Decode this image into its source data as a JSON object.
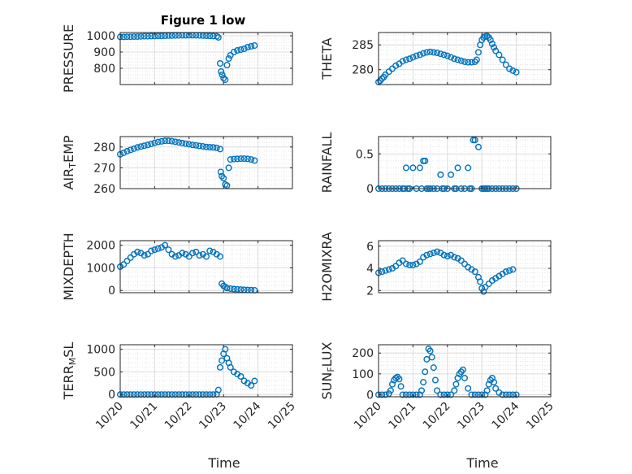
{
  "figure": {
    "title": "Figure 1 low",
    "marker_color": "#0072bd",
    "axis_color": "#262626",
    "grid_color": "#dcdcdc"
  },
  "chart_data": [
    {
      "id": "pressure",
      "type": "scatter",
      "title": "Figure 1 low",
      "ylabel": "PRESSURE",
      "ylabel_sub": "",
      "ylabel_tail": "",
      "xlim": [
        0,
        5
      ],
      "ylim": [
        700,
        1020
      ],
      "yticks": [
        800,
        900,
        1000
      ],
      "xticks": [
        0,
        1,
        2,
        3,
        4,
        5
      ],
      "xticklabels": [],
      "xlabel": "",
      "x": [
        0,
        0.1,
        0.2,
        0.3,
        0.4,
        0.5,
        0.6,
        0.7,
        0.8,
        0.9,
        1.0,
        1.1,
        1.2,
        1.3,
        1.4,
        1.5,
        1.6,
        1.7,
        1.8,
        1.9,
        2.0,
        2.1,
        2.2,
        2.3,
        2.4,
        2.5,
        2.6,
        2.7,
        2.8,
        2.85,
        2.9,
        2.93,
        2.96,
        3.0,
        3.05,
        3.1,
        3.15,
        3.2,
        3.3,
        3.4,
        3.5,
        3.6,
        3.7,
        3.8,
        3.9
      ],
      "y": [
        993,
        993,
        994,
        994,
        995,
        995,
        996,
        997,
        997,
        998,
        998,
        999,
        999,
        1000,
        1001,
        1001,
        1002,
        1002,
        1003,
        1003,
        1003,
        1003,
        1003,
        1002,
        1001,
        1000,
        999,
        998,
        997,
        990,
        830,
        780,
        760,
        740,
        730,
        820,
        860,
        880,
        900,
        910,
        915,
        920,
        930,
        935,
        940
      ]
    },
    {
      "id": "theta",
      "type": "scatter",
      "title": "",
      "ylabel": "THETA",
      "ylabel_sub": "",
      "ylabel_tail": "",
      "xlim": [
        0,
        5
      ],
      "ylim": [
        277,
        287.5
      ],
      "yticks": [
        280,
        285
      ],
      "xticks": [
        0,
        1,
        2,
        3,
        4,
        5
      ],
      "xticklabels": [],
      "xlabel": "",
      "x": [
        0,
        0.05,
        0.1,
        0.15,
        0.2,
        0.3,
        0.4,
        0.5,
        0.6,
        0.7,
        0.8,
        0.9,
        1.0,
        1.1,
        1.2,
        1.3,
        1.4,
        1.5,
        1.6,
        1.7,
        1.8,
        1.9,
        2.0,
        2.1,
        2.2,
        2.3,
        2.4,
        2.5,
        2.6,
        2.7,
        2.8,
        2.85,
        2.9,
        2.95,
        3.0,
        3.05,
        3.1,
        3.15,
        3.2,
        3.25,
        3.3,
        3.35,
        3.4,
        3.5,
        3.6,
        3.7,
        3.8,
        3.9,
        4.0
      ],
      "y": [
        277.5,
        277.8,
        278.2,
        278.5,
        279.0,
        279.6,
        280.2,
        280.8,
        281.2,
        281.7,
        282.0,
        282.2,
        282.5,
        282.8,
        283.0,
        283.3,
        283.5,
        283.6,
        283.5,
        283.4,
        283.2,
        283.0,
        282.8,
        282.5,
        282.2,
        282.0,
        281.8,
        281.6,
        281.5,
        281.5,
        281.6,
        282.0,
        283.5,
        285.0,
        286.0,
        286.5,
        286.7,
        286.8,
        286.5,
        286.0,
        285.2,
        284.5,
        283.8,
        283.0,
        282.0,
        281.0,
        280.2,
        279.8,
        279.5
      ]
    },
    {
      "id": "air_temp",
      "type": "scatter",
      "title": "",
      "ylabel": "AIR",
      "ylabel_sub": "T",
      "ylabel_tail": "EMP",
      "xlim": [
        0,
        5
      ],
      "ylim": [
        260,
        285
      ],
      "yticks": [
        260,
        270,
        280
      ],
      "xticks": [
        0,
        1,
        2,
        3,
        4,
        5
      ],
      "xticklabels": [],
      "xlabel": "",
      "x": [
        0,
        0.1,
        0.2,
        0.3,
        0.4,
        0.5,
        0.6,
        0.7,
        0.8,
        0.9,
        1.0,
        1.1,
        1.2,
        1.3,
        1.4,
        1.5,
        1.6,
        1.7,
        1.8,
        1.9,
        2.0,
        2.1,
        2.2,
        2.3,
        2.4,
        2.5,
        2.6,
        2.7,
        2.8,
        2.9,
        2.92,
        2.95,
        3.0,
        3.05,
        3.1,
        3.15,
        3.2,
        3.3,
        3.4,
        3.5,
        3.6,
        3.7,
        3.8,
        3.9
      ],
      "y": [
        276.5,
        277.2,
        278.0,
        278.6,
        279.2,
        279.8,
        280.2,
        280.6,
        281.0,
        281.5,
        282.0,
        282.4,
        282.7,
        283.0,
        283.0,
        282.8,
        282.5,
        282.2,
        281.9,
        281.6,
        281.3,
        281.0,
        280.8,
        280.5,
        280.3,
        280.0,
        279.9,
        279.8,
        279.6,
        279.0,
        268.0,
        266.0,
        265.0,
        262.0,
        261.5,
        270.0,
        274.0,
        274.2,
        274.3,
        274.4,
        274.4,
        274.3,
        274.0,
        273.5
      ]
    },
    {
      "id": "rainfall",
      "type": "scatter",
      "title": "",
      "ylabel": "RAINFALL",
      "ylabel_sub": "",
      "ylabel_tail": "",
      "xlim": [
        0,
        5
      ],
      "ylim": [
        0,
        0.75
      ],
      "yticks": [
        0,
        0.5
      ],
      "xticks": [
        0,
        1,
        2,
        3,
        4,
        5
      ],
      "xticklabels": [],
      "xlabel": "",
      "x": [
        0,
        0.1,
        0.2,
        0.3,
        0.4,
        0.5,
        0.6,
        0.7,
        0.75,
        0.8,
        0.85,
        0.9,
        1.0,
        1.1,
        1.2,
        1.25,
        1.3,
        1.35,
        1.4,
        1.45,
        1.5,
        1.6,
        1.7,
        1.8,
        1.85,
        1.9,
        2.0,
        2.1,
        2.2,
        2.25,
        2.3,
        2.4,
        2.5,
        2.6,
        2.65,
        2.7,
        2.75,
        2.8,
        2.9,
        3.0,
        3.05,
        3.1,
        3.15,
        3.2,
        3.3,
        3.4,
        3.5,
        3.6,
        3.7,
        3.8,
        3.9,
        4.0
      ],
      "y": [
        0,
        0,
        0,
        0,
        0,
        0,
        0,
        0,
        0,
        0.3,
        0,
        0,
        0.3,
        0,
        0.3,
        0,
        0.4,
        0.4,
        0,
        0,
        0,
        0,
        0,
        0.2,
        0,
        0,
        0,
        0.2,
        0,
        0,
        0.3,
        0,
        0,
        0.3,
        0,
        0,
        0.7,
        0.7,
        0.6,
        0,
        0,
        0,
        0,
        0,
        0,
        0,
        0,
        0,
        0,
        0,
        0,
        0
      ]
    },
    {
      "id": "mixdepth",
      "type": "scatter",
      "title": "",
      "ylabel": "MIXDEPTH",
      "ylabel_sub": "",
      "ylabel_tail": "",
      "xlim": [
        0,
        5
      ],
      "ylim": [
        -100,
        2200
      ],
      "yticks": [
        0,
        1000,
        2000
      ],
      "xticks": [
        0,
        1,
        2,
        3,
        4,
        5
      ],
      "xticklabels": [],
      "xlabel": "",
      "x": [
        0,
        0.1,
        0.2,
        0.3,
        0.4,
        0.5,
        0.6,
        0.7,
        0.8,
        0.9,
        1.0,
        1.1,
        1.2,
        1.3,
        1.4,
        1.5,
        1.6,
        1.7,
        1.8,
        1.9,
        2.0,
        2.1,
        2.2,
        2.3,
        2.4,
        2.5,
        2.6,
        2.7,
        2.8,
        2.9,
        2.95,
        3.0,
        3.05,
        3.1,
        3.2,
        3.3,
        3.4,
        3.5,
        3.6,
        3.7,
        3.8,
        3.9
      ],
      "y": [
        1050,
        1150,
        1300,
        1450,
        1600,
        1700,
        1650,
        1550,
        1600,
        1750,
        1800,
        1850,
        1900,
        2000,
        1800,
        1600,
        1500,
        1550,
        1650,
        1600,
        1500,
        1650,
        1700,
        1550,
        1600,
        1500,
        1750,
        1700,
        1600,
        1500,
        300,
        200,
        150,
        100,
        80,
        60,
        50,
        40,
        30,
        20,
        15,
        10
      ]
    },
    {
      "id": "h2omixra",
      "type": "scatter",
      "title": "",
      "ylabel": "H2OMIXRA",
      "ylabel_sub": "",
      "ylabel_tail": "",
      "xlim": [
        0,
        5
      ],
      "ylim": [
        1.8,
        6.5
      ],
      "yticks": [
        2,
        4,
        6
      ],
      "xticks": [
        0,
        1,
        2,
        3,
        4,
        5
      ],
      "xticklabels": [],
      "xlabel": "",
      "x": [
        0,
        0.1,
        0.2,
        0.3,
        0.4,
        0.5,
        0.6,
        0.7,
        0.8,
        0.9,
        1.0,
        1.1,
        1.2,
        1.3,
        1.4,
        1.5,
        1.6,
        1.7,
        1.8,
        1.9,
        2.0,
        2.1,
        2.2,
        2.3,
        2.4,
        2.5,
        2.6,
        2.7,
        2.8,
        2.9,
        2.95,
        3.0,
        3.05,
        3.1,
        3.2,
        3.3,
        3.4,
        3.5,
        3.6,
        3.7,
        3.8,
        3.9
      ],
      "y": [
        3.6,
        3.7,
        3.8,
        3.9,
        4.0,
        4.2,
        4.5,
        4.7,
        4.4,
        4.3,
        4.3,
        4.4,
        4.6,
        5.0,
        5.2,
        5.3,
        5.4,
        5.5,
        5.4,
        5.2,
        5.1,
        5.2,
        5.0,
        4.9,
        4.7,
        4.4,
        4.1,
        3.9,
        3.7,
        3.2,
        2.8,
        2.2,
        1.9,
        2.3,
        2.6,
        2.9,
        3.1,
        3.3,
        3.5,
        3.7,
        3.8,
        3.9
      ]
    },
    {
      "id": "terr_msl",
      "type": "scatter",
      "title": "",
      "ylabel": "TERR",
      "ylabel_sub": "M",
      "ylabel_tail": "SL",
      "xlim": [
        0,
        5
      ],
      "ylim": [
        -50,
        1100
      ],
      "yticks": [
        0,
        500,
        1000
      ],
      "xticks": [
        0,
        1,
        2,
        3,
        4,
        5
      ],
      "xticklabels": [
        "10/20",
        "10/21",
        "10/22",
        "10/23",
        "10/24",
        "10/25"
      ],
      "xlabel": "Time",
      "x": [
        0,
        0.1,
        0.2,
        0.3,
        0.4,
        0.5,
        0.6,
        0.7,
        0.8,
        0.9,
        1.0,
        1.1,
        1.2,
        1.3,
        1.4,
        1.5,
        1.6,
        1.7,
        1.8,
        1.9,
        2.0,
        2.1,
        2.2,
        2.3,
        2.4,
        2.5,
        2.6,
        2.7,
        2.8,
        2.85,
        2.9,
        2.95,
        3.0,
        3.05,
        3.1,
        3.15,
        3.2,
        3.3,
        3.4,
        3.5,
        3.6,
        3.7,
        3.8,
        3.9
      ],
      "y": [
        0,
        0,
        0,
        0,
        0,
        0,
        0,
        0,
        0,
        0,
        0,
        0,
        0,
        0,
        0,
        0,
        0,
        0,
        0,
        0,
        0,
        0,
        0,
        0,
        0,
        0,
        0,
        0,
        5,
        100,
        600,
        750,
        900,
        1000,
        800,
        700,
        600,
        500,
        450,
        400,
        300,
        250,
        200,
        300
      ]
    },
    {
      "id": "sun_flux",
      "type": "scatter",
      "title": "",
      "ylabel": "SUN",
      "ylabel_sub": "F",
      "ylabel_tail": "LUX",
      "xlim": [
        0,
        5
      ],
      "ylim": [
        -10,
        240
      ],
      "yticks": [
        0,
        100,
        200
      ],
      "xticks": [
        0,
        1,
        2,
        3,
        4,
        5
      ],
      "xticklabels": [
        "10/20",
        "10/21",
        "10/22",
        "10/23",
        "10/24",
        "10/25"
      ],
      "xlabel": "Time",
      "x": [
        0,
        0.1,
        0.2,
        0.3,
        0.35,
        0.4,
        0.45,
        0.5,
        0.55,
        0.6,
        0.65,
        0.7,
        0.8,
        0.9,
        1.0,
        1.1,
        1.2,
        1.25,
        1.3,
        1.35,
        1.4,
        1.45,
        1.5,
        1.55,
        1.6,
        1.65,
        1.7,
        1.8,
        1.9,
        2.0,
        2.1,
        2.2,
        2.25,
        2.3,
        2.35,
        2.4,
        2.45,
        2.5,
        2.6,
        2.7,
        2.8,
        2.9,
        3.0,
        3.1,
        3.15,
        3.2,
        3.25,
        3.3,
        3.35,
        3.4,
        3.5,
        3.6,
        3.7,
        3.8,
        3.9,
        4.0
      ],
      "y": [
        0,
        0,
        0,
        5,
        20,
        50,
        70,
        80,
        85,
        75,
        40,
        0,
        0,
        0,
        0,
        0,
        0,
        20,
        60,
        110,
        170,
        220,
        210,
        180,
        130,
        70,
        20,
        0,
        0,
        0,
        0,
        20,
        50,
        80,
        100,
        110,
        120,
        80,
        30,
        0,
        0,
        0,
        0,
        0,
        20,
        50,
        70,
        80,
        60,
        30,
        10,
        0,
        0,
        0,
        0,
        0
      ]
    }
  ]
}
